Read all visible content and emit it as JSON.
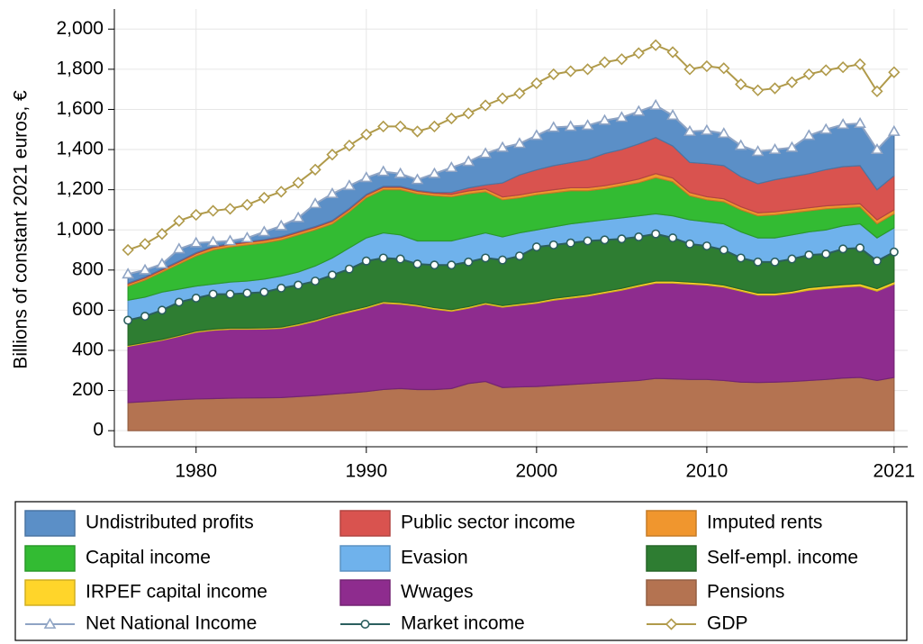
{
  "chart_data": {
    "type": "stacked-area-line",
    "y_label": "Billions of constant 2021 euros, €",
    "x": [
      1976,
      1977,
      1978,
      1979,
      1980,
      1981,
      1982,
      1983,
      1984,
      1985,
      1986,
      1987,
      1988,
      1989,
      1990,
      1991,
      1992,
      1993,
      1994,
      1995,
      1996,
      1997,
      1998,
      1999,
      2000,
      2001,
      2002,
      2003,
      2004,
      2005,
      2006,
      2007,
      2008,
      2009,
      2010,
      2011,
      2012,
      2013,
      2014,
      2015,
      2016,
      2017,
      2018,
      2019,
      2020,
      2021
    ],
    "xlim": [
      1975.2,
      2021.8
    ],
    "xticks": [
      1980,
      1990,
      2000,
      2010,
      2021
    ],
    "ylim": [
      -80,
      2100
    ],
    "yticks": [
      0,
      200,
      400,
      600,
      800,
      {
        "value": 1000,
        "label": "1,000"
      },
      {
        "value": 1200,
        "label": "1,200"
      },
      {
        "value": 1400,
        "label": "1,400"
      },
      {
        "value": 1600,
        "label": "1,600"
      },
      {
        "value": 1800,
        "label": "1,800"
      },
      {
        "value": 2000,
        "label": "2,000"
      }
    ],
    "grid": true,
    "series": [
      {
        "name": "Pensions",
        "kind": "area",
        "color": "#b47351",
        "values": [
          140,
          145,
          150,
          155,
          158,
          160,
          162,
          163,
          164,
          165,
          170,
          175,
          182,
          188,
          195,
          205,
          210,
          205,
          205,
          210,
          235,
          245,
          215,
          218,
          220,
          225,
          230,
          235,
          240,
          245,
          250,
          260,
          258,
          255,
          255,
          250,
          242,
          240,
          242,
          245,
          250,
          255,
          262,
          265,
          250,
          265
        ]
      },
      {
        "name": "Wwages",
        "kind": "area",
        "color": "#8e2c8e",
        "values": [
          280,
          290,
          300,
          315,
          332,
          340,
          343,
          342,
          342,
          345,
          355,
          370,
          388,
          402,
          415,
          430,
          420,
          415,
          400,
          385,
          375,
          385,
          400,
          407,
          415,
          425,
          430,
          435,
          445,
          455,
          468,
          475,
          477,
          475,
          470,
          465,
          453,
          435,
          433,
          440,
          450,
          453,
          453,
          455,
          445,
          465
        ]
      },
      {
        "name": "IRPEF capital income",
        "kind": "area",
        "color": "#ffd52a",
        "values": [
          5,
          5,
          5,
          5,
          6,
          6,
          6,
          6,
          6,
          6,
          7,
          7,
          7,
          8,
          8,
          8,
          8,
          8,
          8,
          8,
          8,
          8,
          8,
          8,
          8,
          9,
          9,
          9,
          9,
          9,
          10,
          10,
          10,
          10,
          10,
          10,
          10,
          10,
          10,
          10,
          12,
          12,
          12,
          12,
          12,
          12
        ]
      },
      {
        "name": "Self-empl. income",
        "kind": "area",
        "color": "#2e7d32",
        "values": [
          125,
          130,
          145,
          165,
          164,
          174,
          169,
          174,
          178,
          194,
          193,
          193,
          198,
          207,
          227,
          217,
          217,
          202,
          212,
          222,
          222,
          222,
          227,
          237,
          272,
          266,
          266,
          266,
          256,
          246,
          237,
          235,
          215,
          190,
          185,
          175,
          155,
          155,
          155,
          160,
          163,
          160,
          178,
          178,
          138,
          148
        ]
      },
      {
        "name": "Evasion",
        "kind": "area",
        "color": "#6fb2ec",
        "values": [
          100,
          95,
          90,
          65,
          60,
          50,
          60,
          60,
          65,
          60,
          65,
          75,
          85,
          105,
          115,
          125,
          120,
          115,
          120,
          120,
          125,
          125,
          115,
          115,
          85,
          90,
          95,
          95,
          100,
          105,
          105,
          100,
          110,
          120,
          120,
          130,
          130,
          120,
          120,
          120,
          115,
          120,
          115,
          120,
          115,
          120
        ]
      },
      {
        "name": "Capital income",
        "kind": "area",
        "color": "#33bb33",
        "values": [
          70,
          85,
          100,
          125,
          150,
          170,
          175,
          180,
          180,
          180,
          185,
          180,
          170,
          180,
          200,
          215,
          225,
          235,
          225,
          220,
          215,
          205,
          185,
          175,
          175,
          170,
          165,
          155,
          155,
          160,
          165,
          180,
          170,
          120,
          110,
          110,
          110,
          110,
          115,
          110,
          105,
          105,
          90,
          85,
          70,
          70
        ]
      },
      {
        "name": "Imputed rents",
        "kind": "area",
        "color": "#f0962e",
        "values": [
          10,
          10,
          10,
          10,
          12,
          12,
          12,
          12,
          12,
          12,
          12,
          12,
          12,
          12,
          12,
          12,
          12,
          12,
          12,
          12,
          14,
          14,
          14,
          14,
          14,
          15,
          15,
          15,
          15,
          15,
          18,
          20,
          18,
          16,
          15,
          15,
          15,
          15,
          15,
          15,
          15,
          15,
          15,
          15,
          20,
          20
        ]
      },
      {
        "name": "Public sector income",
        "kind": "area",
        "color": "#d9534f",
        "values": [
          5,
          5,
          5,
          5,
          5,
          5,
          5,
          5,
          5,
          5,
          5,
          5,
          5,
          5,
          5,
          5,
          5,
          5,
          5,
          10,
          15,
          20,
          70,
          100,
          110,
          120,
          125,
          140,
          160,
          165,
          175,
          180,
          160,
          150,
          165,
          165,
          150,
          145,
          160,
          165,
          170,
          180,
          190,
          190,
          150,
          170
        ]
      },
      {
        "name": "Undistributed profits",
        "kind": "area",
        "color": "#5b8fc7",
        "values": [
          45,
          35,
          25,
          60,
          48,
          23,
          13,
          18,
          38,
          53,
          68,
          113,
          133,
          113,
          83,
          73,
          63,
          53,
          93,
          123,
          131,
          156,
          176,
          156,
          171,
          190,
          180,
          170,
          165,
          160,
          162,
          160,
          152,
          154,
          165,
          160,
          155,
          160,
          150,
          145,
          190,
          200,
          210,
          210,
          200,
          220
        ]
      },
      {
        "name": "Net National Income",
        "kind": "line",
        "marker": "triangle",
        "color": "#8fa4c4",
        "values": [
          780,
          800,
          830,
          905,
          935,
          940,
          945,
          960,
          990,
          1020,
          1060,
          1130,
          1180,
          1220,
          1260,
          1290,
          1280,
          1250,
          1280,
          1310,
          1340,
          1380,
          1410,
          1430,
          1470,
          1510,
          1515,
          1520,
          1545,
          1560,
          1590,
          1620,
          1570,
          1490,
          1495,
          1480,
          1420,
          1390,
          1400,
          1410,
          1470,
          1500,
          1525,
          1530,
          1400,
          1490
        ]
      },
      {
        "name": "Market income",
        "kind": "line",
        "marker": "circle",
        "color": "#2b5e5e",
        "values": [
          550,
          570,
          600,
          640,
          660,
          680,
          680,
          685,
          690,
          710,
          725,
          745,
          775,
          805,
          845,
          860,
          855,
          830,
          825,
          825,
          840,
          860,
          850,
          870,
          915,
          925,
          935,
          945,
          950,
          955,
          965,
          980,
          960,
          930,
          920,
          900,
          860,
          840,
          840,
          855,
          875,
          880,
          905,
          910,
          845,
          890
        ]
      },
      {
        "name": "GDP",
        "kind": "line",
        "marker": "diamond",
        "color": "#b09a4a",
        "values": [
          900,
          930,
          980,
          1045,
          1075,
          1095,
          1105,
          1125,
          1160,
          1190,
          1235,
          1300,
          1375,
          1420,
          1475,
          1515,
          1515,
          1490,
          1515,
          1555,
          1580,
          1620,
          1655,
          1680,
          1730,
          1775,
          1790,
          1800,
          1835,
          1850,
          1880,
          1920,
          1885,
          1800,
          1815,
          1805,
          1725,
          1695,
          1705,
          1735,
          1775,
          1795,
          1810,
          1825,
          1690,
          1785
        ]
      }
    ]
  }
}
